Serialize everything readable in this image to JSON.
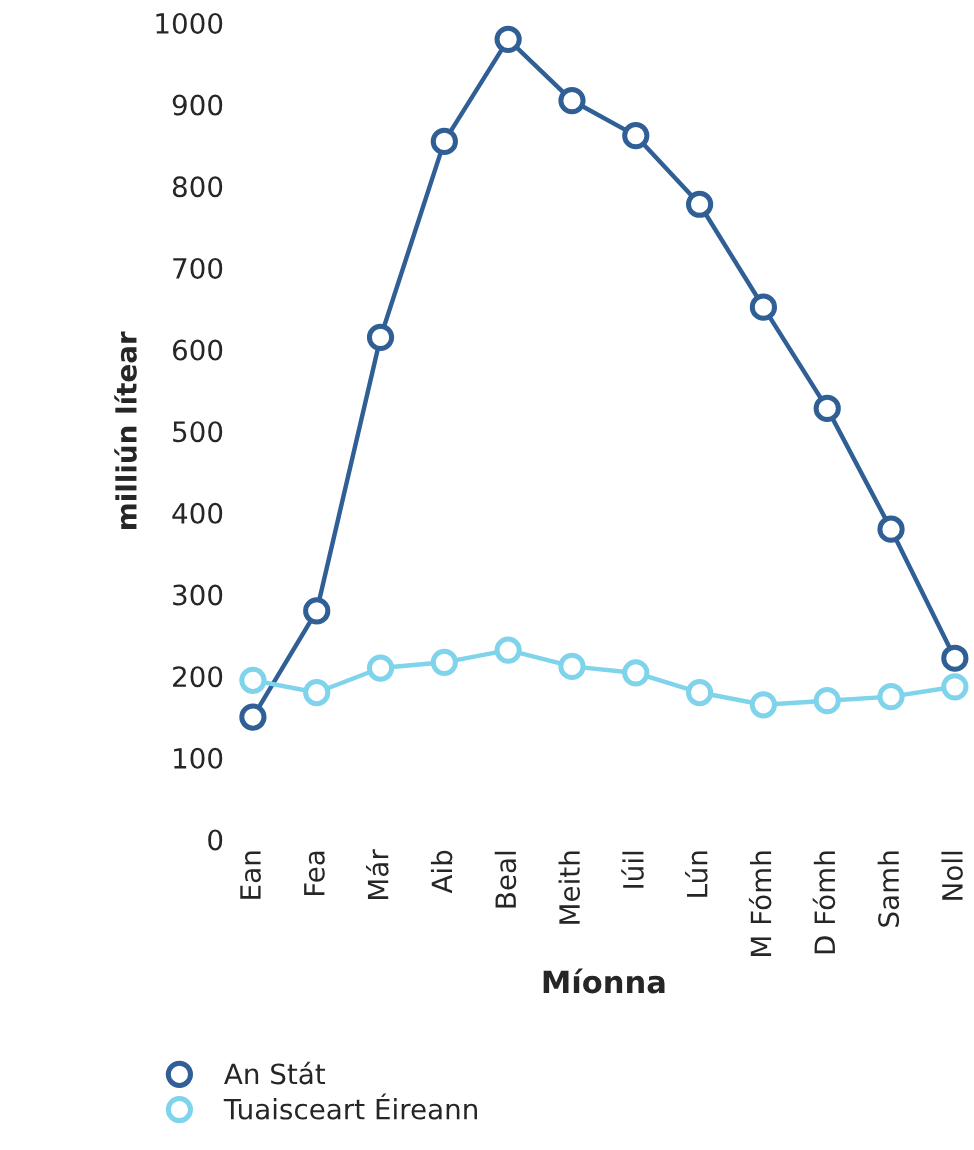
{
  "chart_data": {
    "type": "line",
    "xlabel": "Míonna",
    "ylabel": "milliún lítear",
    "categories": [
      "Ean",
      "Fea",
      "Már",
      "Aib",
      "Beal",
      "Meith",
      "Iúil",
      "Lún",
      "M Fómh",
      "D Fómh",
      "Samh",
      "Noll"
    ],
    "series": [
      {
        "name": "An Stát",
        "color": "#2f5f95",
        "values": [
          150,
          280,
          615,
          855,
          980,
          905,
          862,
          778,
          652,
          528,
          380,
          222
        ]
      },
      {
        "name": "Tuaisceart Éireann",
        "color": "#7fd3ea",
        "values": [
          195,
          180,
          210,
          217,
          232,
          212,
          204,
          180,
          165,
          170,
          175,
          187
        ]
      }
    ],
    "ylim": [
      0,
      1000
    ],
    "yticks": [
      0,
      100,
      200,
      300,
      400,
      500,
      600,
      700,
      800,
      900,
      1000
    ],
    "marker": "circle",
    "line_style": "solid",
    "grid": false,
    "legend": "bottom left"
  }
}
